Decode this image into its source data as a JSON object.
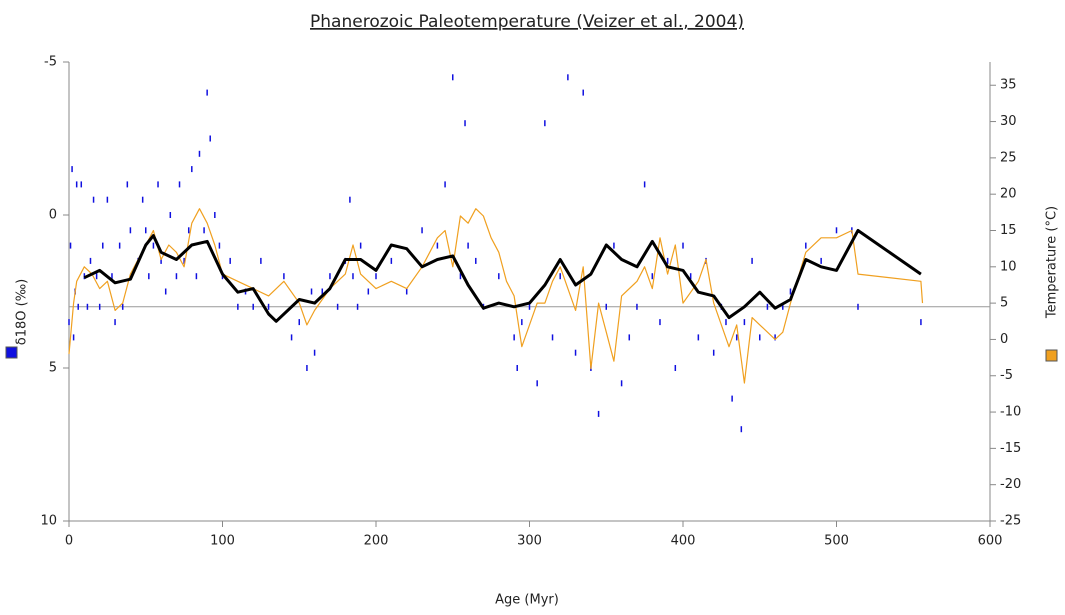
{
  "chart_data": {
    "type": "scatter",
    "title": "Phanerozoic Paleotemperature (Veizer et al., 2004)",
    "x_label": "Age (Myr)",
    "y_label": "δ18O (‰)",
    "y2_label": "Temperature (°C)",
    "xlim": [
      0,
      600
    ],
    "xticks": [
      0,
      100,
      200,
      300,
      400,
      500,
      600
    ],
    "ylim": [
      10,
      -5
    ],
    "yticks": [
      -5,
      0,
      5,
      10
    ],
    "y2lim": [
      -25,
      38.2
    ],
    "y2ticks": [
      -25,
      -20,
      -15,
      -10,
      -5,
      0,
      5,
      10,
      15,
      20,
      25,
      30,
      35
    ],
    "reference_line": 3,
    "series": [
      {
        "type": "scatter",
        "color": "#1010e0",
        "x": [
          0,
          1,
          2,
          3,
          4,
          5,
          6,
          8,
          10,
          12,
          14,
          16,
          18,
          20,
          22,
          25,
          28,
          30,
          33,
          35,
          38,
          40,
          45,
          48,
          50,
          52,
          55,
          58,
          60,
          63,
          66,
          70,
          72,
          75,
          78,
          80,
          83,
          85,
          88,
          90,
          92,
          95,
          98,
          100,
          105,
          110,
          115,
          120,
          125,
          130,
          140,
          145,
          150,
          155,
          158,
          160,
          165,
          170,
          175,
          180,
          183,
          185,
          188,
          190,
          195,
          200,
          210,
          220,
          230,
          240,
          245,
          250,
          255,
          258,
          260,
          265,
          270,
          280,
          290,
          292,
          295,
          300,
          305,
          310,
          315,
          320,
          325,
          330,
          335,
          340,
          345,
          350,
          355,
          360,
          365,
          370,
          375,
          380,
          385,
          390,
          395,
          400,
          405,
          410,
          415,
          420,
          425,
          428,
          432,
          435,
          438,
          440,
          445,
          450,
          455,
          460,
          465,
          470,
          480,
          490,
          500,
          510,
          514,
          555
        ],
        "values": [
          3.5,
          1,
          -1.5,
          4,
          2.5,
          -1,
          3,
          -1,
          2,
          3,
          1.5,
          -0.5,
          2,
          3,
          1,
          -0.5,
          2,
          3.5,
          1,
          3,
          -1,
          0.5,
          1.5,
          -0.5,
          0.5,
          2,
          1,
          -1,
          1.5,
          2.5,
          0,
          2,
          -1,
          1.5,
          0.5,
          -1.5,
          2,
          -2,
          0.5,
          -4,
          -2.5,
          0,
          1,
          2,
          1.5,
          3,
          2.5,
          3,
          1.5,
          3,
          2,
          4,
          3.5,
          5,
          2.5,
          4.5,
          2.5,
          2,
          3,
          1.5,
          -0.5,
          2,
          3,
          1,
          2.5,
          2,
          1.5,
          2.5,
          0.5,
          1,
          -1,
          -4.5,
          2,
          -3,
          1,
          1.5,
          3,
          2,
          4,
          5,
          3.5,
          3,
          5.5,
          -3,
          4,
          2,
          -4.5,
          4.5,
          -4,
          5,
          6.5,
          3,
          1,
          5.5,
          4,
          3,
          -1,
          2,
          3.5,
          1.5,
          5,
          1,
          2,
          4,
          1.5,
          4.5,
          3,
          3.5,
          6,
          4,
          7,
          3.5,
          1.5,
          4,
          3,
          4,
          3,
          2.5,
          1,
          1.5,
          0.5,
          0.5,
          3,
          3.5
        ]
      },
      {
        "type": "line",
        "axis": "y2",
        "color": "#f0a020",
        "x": [
          0,
          3,
          5,
          10,
          15,
          20,
          25,
          30,
          35,
          40,
          45,
          50,
          55,
          60,
          65,
          70,
          75,
          80,
          85,
          90,
          95,
          100,
          110,
          120,
          130,
          140,
          150,
          155,
          160,
          170,
          180,
          185,
          190,
          200,
          210,
          220,
          230,
          240,
          245,
          250,
          255,
          260,
          265,
          270,
          275,
          280,
          285,
          290,
          295,
          300,
          305,
          310,
          315,
          320,
          330,
          335,
          340,
          345,
          350,
          355,
          360,
          370,
          375,
          380,
          385,
          390,
          395,
          400,
          410,
          415,
          420,
          430,
          435,
          440,
          445,
          450,
          460,
          465,
          470,
          480,
          490,
          500,
          510,
          514,
          555,
          556
        ],
        "values": [
          -2,
          5,
          8,
          10,
          9,
          7,
          8,
          4,
          5,
          9,
          11,
          13,
          15,
          11,
          13,
          12,
          10,
          16,
          18,
          16,
          13,
          9,
          8,
          7,
          6,
          8,
          5,
          2,
          4,
          7,
          9,
          13,
          9,
          7,
          8,
          7,
          10,
          14,
          15,
          10,
          17,
          16,
          18,
          17,
          14,
          12,
          8,
          6,
          -1,
          2,
          5,
          5,
          8,
          10,
          4,
          10,
          -4,
          5,
          1,
          -3,
          6,
          8,
          10,
          7,
          14,
          9,
          13,
          5,
          8,
          11,
          5,
          -1,
          2,
          -6,
          3,
          2,
          0,
          1,
          5,
          12,
          14,
          14,
          15,
          9,
          8,
          5
        ]
      },
      {
        "type": "line",
        "axis": "y2",
        "color": "#000000",
        "width": 3,
        "x": [
          10,
          20,
          30,
          40,
          50,
          55,
          60,
          70,
          80,
          90,
          100,
          110,
          120,
          130,
          135,
          150,
          160,
          170,
          180,
          190,
          200,
          210,
          220,
          230,
          240,
          250,
          260,
          270,
          280,
          290,
          300,
          310,
          320,
          330,
          340,
          350,
          360,
          370,
          380,
          390,
          400,
          410,
          420,
          430,
          440,
          450,
          460,
          470,
          480,
          490,
          500,
          514,
          555
        ],
        "values": [
          8.5,
          9.5,
          7.8,
          8.3,
          13,
          14.3,
          12,
          11,
          13,
          13.5,
          9,
          6.5,
          7,
          3.5,
          2.5,
          5.5,
          5,
          7,
          11,
          11,
          9.5,
          13,
          12.5,
          10,
          11,
          11.5,
          7.5,
          4.3,
          5,
          4.5,
          5,
          7.5,
          11,
          7.5,
          9,
          13,
          11,
          10,
          13.5,
          10,
          9.5,
          6.5,
          6,
          3,
          4.5,
          6.5,
          4.3,
          5.5,
          11,
          10,
          9.5,
          15,
          9
        ]
      }
    ]
  }
}
